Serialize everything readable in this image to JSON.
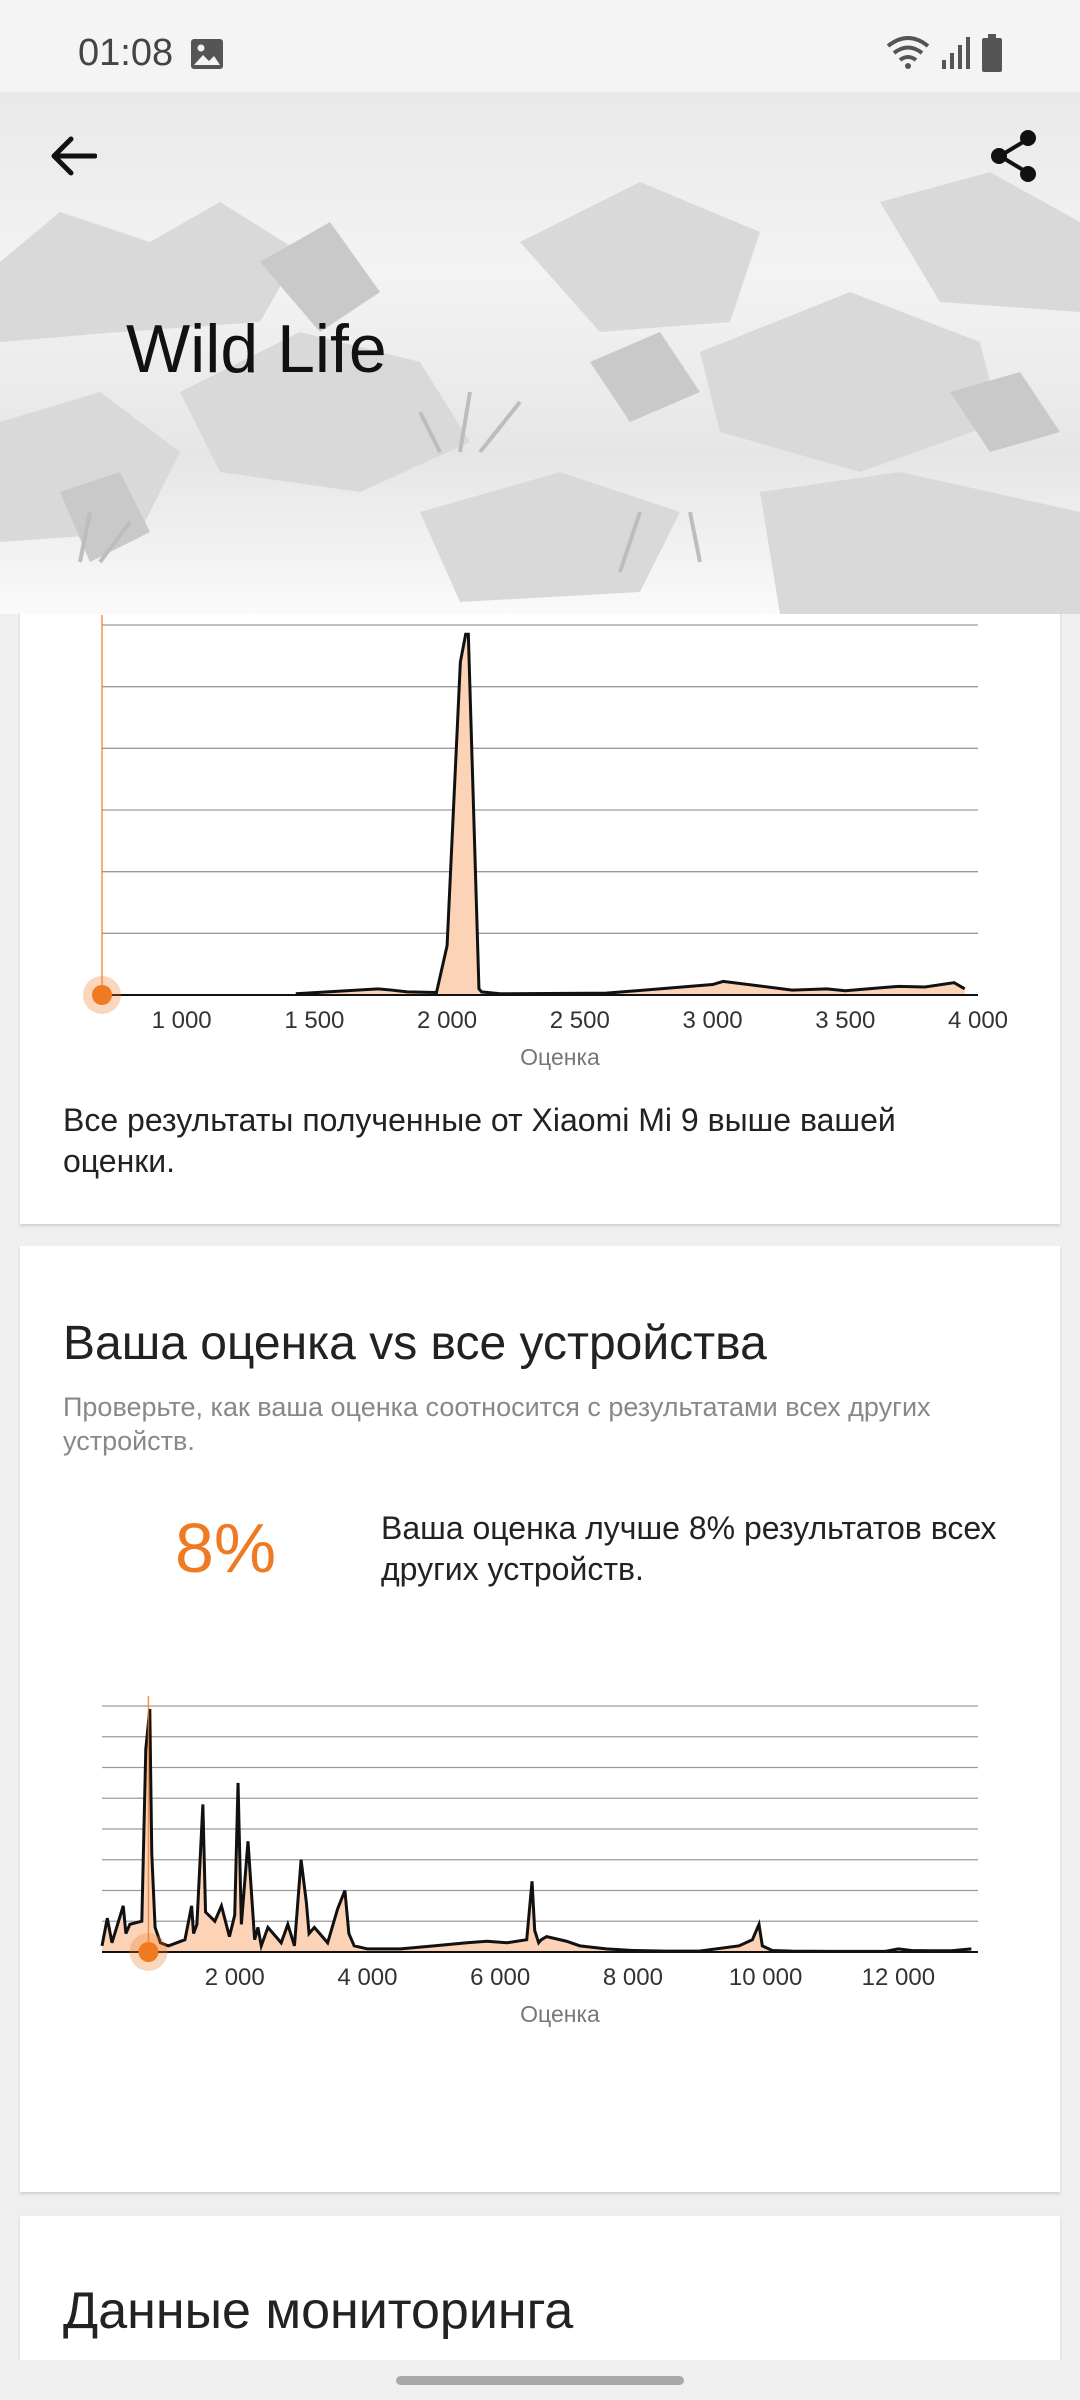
{
  "status_bar": {
    "time": "01:08",
    "icons": [
      "gallery-icon",
      "wifi-icon",
      "signal-icon",
      "battery-icon"
    ]
  },
  "header": {
    "title": "Wild Life",
    "back_icon": "arrow-left-icon",
    "share_icon": "share-icon"
  },
  "device_card": {
    "note": "Все результаты полученные от Xiaomi Mi 9 выше вашей оценки."
  },
  "all_devices_card": {
    "title": "Ваша оценка vs все устройства",
    "subtitle": "Проверьте, как ваша оценка соотносится с результатами всех других устройств.",
    "percent": "8%",
    "percent_text": "Ваша оценка лучше 8% результатов всех других устройств."
  },
  "monitoring_card": {
    "title": "Данные мониторинга"
  },
  "colors": {
    "accent": "#f07a21",
    "fill": "#fcd3b6",
    "grid": "#9a9a9a"
  },
  "chart_data": [
    {
      "type": "area",
      "xlabel": "Оценка",
      "xticks": [
        "1 000",
        "1 500",
        "2 000",
        "2 500",
        "3 000",
        "3 500",
        "4 000"
      ],
      "xlim": [
        700,
        4000
      ],
      "ylim": [
        0,
        6
      ],
      "grid": true,
      "your_score": 700,
      "x": [
        1430,
        1740,
        1790,
        1850,
        1960,
        2000,
        2050,
        2070,
        2080,
        2120,
        2130,
        2200,
        2600,
        3000,
        3040,
        3300,
        3430,
        3500,
        3700,
        3800,
        3910,
        3950
      ],
      "values": [
        0.02,
        0.1,
        0.08,
        0.05,
        0.04,
        0.8,
        5.4,
        5.85,
        5.85,
        0.1,
        0.05,
        0.02,
        0.03,
        0.17,
        0.22,
        0.08,
        0.1,
        0.07,
        0.14,
        0.13,
        0.2,
        0.1
      ]
    },
    {
      "type": "area",
      "xlabel": "Оценка",
      "xticks": [
        "2 000",
        "4 000",
        "6 000",
        "8 000",
        "10 000",
        "12 000"
      ],
      "xlim": [
        0,
        13200
      ],
      "ylim": [
        0,
        8
      ],
      "grid": true,
      "your_score": 700,
      "x": [
        0,
        80,
        150,
        320,
        360,
        420,
        600,
        660,
        720,
        750,
        800,
        880,
        1000,
        1250,
        1350,
        1380,
        1430,
        1520,
        1560,
        1700,
        1800,
        1920,
        2000,
        2050,
        2100,
        2200,
        2300,
        2350,
        2400,
        2500,
        2700,
        2800,
        2900,
        3000,
        3080,
        3120,
        3200,
        3400,
        3550,
        3660,
        3720,
        3800,
        4000,
        4500,
        5000,
        5500,
        5800,
        6100,
        6400,
        6480,
        6520,
        6580,
        6620,
        6700,
        7000,
        7200,
        7600,
        8000,
        8500,
        9000,
        9600,
        9800,
        9900,
        9950,
        10100,
        10400,
        11000,
        11800,
        12000,
        12200,
        12500,
        12800,
        13100
      ],
      "values": [
        0.2,
        1.1,
        0.3,
        1.5,
        0.6,
        0.9,
        1.0,
        6.6,
        7.9,
        3.2,
        0.8,
        0.3,
        0.2,
        0.4,
        1.5,
        0.6,
        0.9,
        4.8,
        1.3,
        1.0,
        1.5,
        0.5,
        1.2,
        5.5,
        0.9,
        3.6,
        0.4,
        0.8,
        0.2,
        0.8,
        0.3,
        0.9,
        0.2,
        3.0,
        1.6,
        0.6,
        0.8,
        0.3,
        1.4,
        2.0,
        0.6,
        0.2,
        0.1,
        0.1,
        0.2,
        0.3,
        0.35,
        0.3,
        0.4,
        2.3,
        0.7,
        0.3,
        0.4,
        0.5,
        0.35,
        0.2,
        0.1,
        0.05,
        0.03,
        0.03,
        0.2,
        0.4,
        0.9,
        0.2,
        0.05,
        0.03,
        0.02,
        0.02,
        0.1,
        0.05,
        0.04,
        0.04,
        0.1
      ]
    }
  ]
}
